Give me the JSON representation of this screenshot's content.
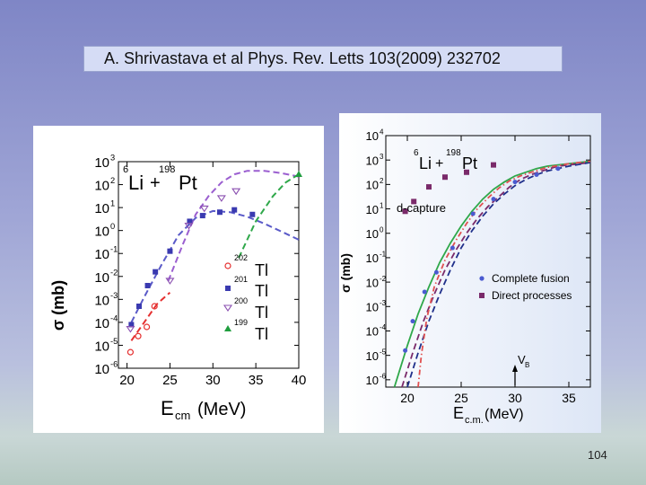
{
  "slide": {
    "reference": "A. Shrivastava et al Phys. Rev. Letts 103(2009) 232702",
    "page_number": "104"
  },
  "chart_data": [
    {
      "type": "scatter",
      "reaction": {
        "a_mass": "6",
        "a_sym": "Li",
        "plus": "+",
        "b_mass": "198",
        "b_sym": "Pt"
      },
      "ylabel": "σ (mb)",
      "xlabel": {
        "main": "E",
        "sub": "cm",
        "unit": "(MeV)"
      },
      "x_ticks": [
        "20",
        "25",
        "30",
        "35",
        "40"
      ],
      "y_ticks": [
        {
          "b": "10",
          "e": "3",
          "v": 3
        },
        {
          "b": "10",
          "e": "2",
          "v": 2
        },
        {
          "b": "10",
          "e": "1",
          "v": 1
        },
        {
          "b": "10",
          "e": "0",
          "v": 0
        },
        {
          "b": "10",
          "e": "-1",
          "v": -1
        },
        {
          "b": "10",
          "e": "-2",
          "v": -2
        },
        {
          "b": "10",
          "e": "-3",
          "v": -3
        },
        {
          "b": "10",
          "e": "-4",
          "v": -4
        },
        {
          "b": "10",
          "e": "-5",
          "v": -5
        },
        {
          "b": "10",
          "e": "-6",
          "v": -6
        }
      ],
      "xlim": [
        19,
        40
      ],
      "ylim_log10": [
        -6,
        3
      ],
      "y_scale": "log",
      "legend": {
        "placement": "bottom-right",
        "entries": [
          {
            "mass": "202",
            "sym": "Tl"
          },
          {
            "mass": "201",
            "sym": "Tl"
          },
          {
            "mass": "200",
            "sym": "Tl"
          },
          {
            "mass": "199",
            "sym": "Tl"
          }
        ]
      },
      "series": [
        {
          "color": "#e53030",
          "marker": "open-circle",
          "points": [
            [
              20.4,
              -5.3
            ],
            [
              21.3,
              -4.6
            ],
            [
              22.3,
              -4.2
            ],
            [
              23.2,
              -3.3
            ]
          ]
        },
        {
          "color": "#3a3ab0",
          "marker": "filled-square",
          "points": [
            [
              20.5,
              -4.1
            ],
            [
              21.4,
              -3.3
            ],
            [
              22.4,
              -2.4
            ],
            [
              23.3,
              -1.8
            ],
            [
              25.0,
              -0.9
            ],
            [
              27.3,
              0.4
            ],
            [
              28.8,
              0.65
            ],
            [
              30.8,
              0.8
            ],
            [
              32.5,
              0.9
            ],
            [
              34.6,
              0.7
            ]
          ]
        },
        {
          "color": "#8a4fb0",
          "marker": "open-triangle-down",
          "points": [
            [
              20.4,
              -4.3
            ],
            [
              25.0,
              -2.2
            ],
            [
              27.2,
              0.2
            ],
            [
              29.0,
              0.95
            ],
            [
              31.0,
              1.4
            ],
            [
              32.7,
              1.7
            ]
          ]
        },
        {
          "color": "#1f9d3e",
          "marker": "filled-triangle-up",
          "points": [
            [
              40.0,
              2.45
            ]
          ]
        }
      ],
      "curves": [
        {
          "color": "#e53030",
          "points": [
            [
              20.5,
              -4.8
            ],
            [
              22.0,
              -4.0
            ],
            [
              23.5,
              -3.2
            ],
            [
              25.0,
              -2.7
            ]
          ]
        },
        {
          "color": "#5a5ac8",
          "points": [
            [
              20.5,
              -4.0
            ],
            [
              22.0,
              -2.9
            ],
            [
              24.0,
              -1.5
            ],
            [
              26.0,
              -0.2
            ],
            [
              28.0,
              0.55
            ],
            [
              30.0,
              0.85
            ],
            [
              32.0,
              0.8
            ],
            [
              34.0,
              0.6
            ],
            [
              36.0,
              0.3
            ],
            [
              38.0,
              -0.05
            ],
            [
              40.0,
              -0.4
            ]
          ]
        },
        {
          "color": "#9b5fd0",
          "points": [
            [
              24.8,
              -2.2
            ],
            [
              26.5,
              -0.6
            ],
            [
              28.0,
              0.7
            ],
            [
              29.5,
              1.5
            ],
            [
              31.0,
              2.1
            ],
            [
              32.5,
              2.45
            ],
            [
              34.0,
              2.6
            ],
            [
              36.0,
              2.6
            ],
            [
              38.0,
              2.5
            ],
            [
              40.0,
              2.35
            ]
          ]
        },
        {
          "color": "#2fa84a",
          "points": [
            [
              33.0,
              -1.2
            ],
            [
              35.0,
              0.4
            ],
            [
              37.0,
              1.5
            ],
            [
              38.5,
              2.1
            ],
            [
              40.0,
              2.45
            ]
          ]
        }
      ]
    },
    {
      "type": "scatter",
      "reaction": {
        "a_mass": "6",
        "a_sym": "Li",
        "plus": "+",
        "b_mass": "198",
        "b_sym": "Pt"
      },
      "ylabel": "σ (mb)",
      "xlabel": {
        "main": "E",
        "sub": "c.m.",
        "unit": "(MeV)"
      },
      "annotation": "d-capture",
      "barrier_marker": {
        "main": "V",
        "sub": "B",
        "x": 30.0
      },
      "x_ticks": [
        "20",
        "25",
        "30",
        "35"
      ],
      "y_ticks": [
        {
          "b": "10",
          "e": "4",
          "v": 4
        },
        {
          "b": "10",
          "e": "3",
          "v": 3
        },
        {
          "b": "10",
          "e": "2",
          "v": 2
        },
        {
          "b": "10",
          "e": "1",
          "v": 1
        },
        {
          "b": "10",
          "e": "0",
          "v": 0
        },
        {
          "b": "10",
          "e": "-1",
          "v": -1
        },
        {
          "b": "10",
          "e": "-2",
          "v": -2
        },
        {
          "b": "10",
          "e": "-3",
          "v": -3
        },
        {
          "b": "10",
          "e": "-4",
          "v": -4
        },
        {
          "b": "10",
          "e": "-5",
          "v": -5
        },
        {
          "b": "10",
          "e": "-6",
          "v": -6
        }
      ],
      "xlim": [
        18,
        37
      ],
      "ylim_log10": [
        -6.3,
        4
      ],
      "y_scale": "log",
      "legend": {
        "placement": "bottom-right",
        "entries": [
          "Complete fusion",
          "Direct processes"
        ]
      },
      "series": [
        {
          "name": "Complete fusion",
          "color": "#4a5ad0",
          "marker": "filled-circle",
          "points": [
            [
              19.8,
              -4.8
            ],
            [
              20.5,
              -3.6
            ],
            [
              21.6,
              -2.4
            ],
            [
              22.7,
              -1.6
            ],
            [
              24.2,
              -0.6
            ],
            [
              26.1,
              0.8
            ],
            [
              28.0,
              1.4
            ],
            [
              30.0,
              2.1
            ],
            [
              32.0,
              2.4
            ],
            [
              34.0,
              2.65
            ]
          ]
        },
        {
          "name": "Direct processes",
          "color": "#7a2a6a",
          "marker": "filled-square",
          "points": [
            [
              19.8,
              0.9
            ],
            [
              20.6,
              1.3
            ],
            [
              22.0,
              1.9
            ],
            [
              23.5,
              2.3
            ],
            [
              25.5,
              2.5
            ],
            [
              28.0,
              2.8
            ]
          ]
        }
      ],
      "curves": [
        {
          "color": "#2fa84a",
          "style": "solid",
          "points": [
            [
              18.8,
              -6.3
            ],
            [
              20.0,
              -4.6
            ],
            [
              21.0,
              -3.3
            ],
            [
              22.0,
              -2.2
            ],
            [
              23.0,
              -1.2
            ],
            [
              24.0,
              -0.4
            ],
            [
              25.0,
              0.3
            ],
            [
              26.0,
              0.9
            ],
            [
              27.0,
              1.4
            ],
            [
              28.0,
              1.8
            ],
            [
              29.0,
              2.1
            ],
            [
              30.0,
              2.35
            ],
            [
              31.0,
              2.5
            ],
            [
              32.0,
              2.65
            ],
            [
              33.0,
              2.75
            ],
            [
              35.0,
              2.85
            ],
            [
              37.0,
              2.95
            ]
          ]
        },
        {
          "color": "#7a2a6a",
          "style": "dashed",
          "points": [
            [
              19.5,
              -6.3
            ],
            [
              20.5,
              -4.9
            ],
            [
              21.5,
              -3.6
            ],
            [
              22.5,
              -2.5
            ],
            [
              23.5,
              -1.5
            ],
            [
              24.5,
              -0.7
            ],
            [
              25.5,
              0.0
            ],
            [
              26.5,
              0.6
            ],
            [
              27.5,
              1.1
            ],
            [
              28.5,
              1.5
            ],
            [
              29.5,
              1.9
            ],
            [
              30.5,
              2.2
            ],
            [
              31.5,
              2.4
            ],
            [
              32.5,
              2.55
            ],
            [
              34.0,
              2.75
            ],
            [
              37.0,
              2.9
            ]
          ]
        },
        {
          "color": "#1f2f8a",
          "style": "dashed",
          "points": [
            [
              20.0,
              -6.3
            ],
            [
              21.0,
              -4.9
            ],
            [
              22.0,
              -3.6
            ],
            [
              23.0,
              -2.5
            ],
            [
              24.0,
              -1.5
            ],
            [
              25.0,
              -0.6
            ],
            [
              26.0,
              0.1
            ],
            [
              27.0,
              0.7
            ],
            [
              28.0,
              1.2
            ],
            [
              29.0,
              1.6
            ],
            [
              30.0,
              1.95
            ],
            [
              31.0,
              2.2
            ],
            [
              32.0,
              2.4
            ],
            [
              33.0,
              2.55
            ],
            [
              35.0,
              2.75
            ],
            [
              37.0,
              2.9
            ]
          ]
        },
        {
          "color": "#e05050",
          "style": "dashdot",
          "points": [
            [
              21.0,
              -6.3
            ],
            [
              21.3,
              -5.0
            ],
            [
              21.8,
              -3.5
            ],
            [
              22.5,
              -2.2
            ],
            [
              23.5,
              -1.1
            ],
            [
              24.5,
              -0.3
            ],
            [
              25.5,
              0.4
            ],
            [
              26.5,
              1.0
            ],
            [
              27.5,
              1.45
            ],
            [
              28.5,
              1.85
            ],
            [
              29.5,
              2.15
            ],
            [
              30.5,
              2.35
            ],
            [
              31.5,
              2.5
            ],
            [
              33.0,
              2.7
            ],
            [
              35.0,
              2.85
            ],
            [
              37.0,
              2.95
            ]
          ]
        }
      ]
    }
  ]
}
